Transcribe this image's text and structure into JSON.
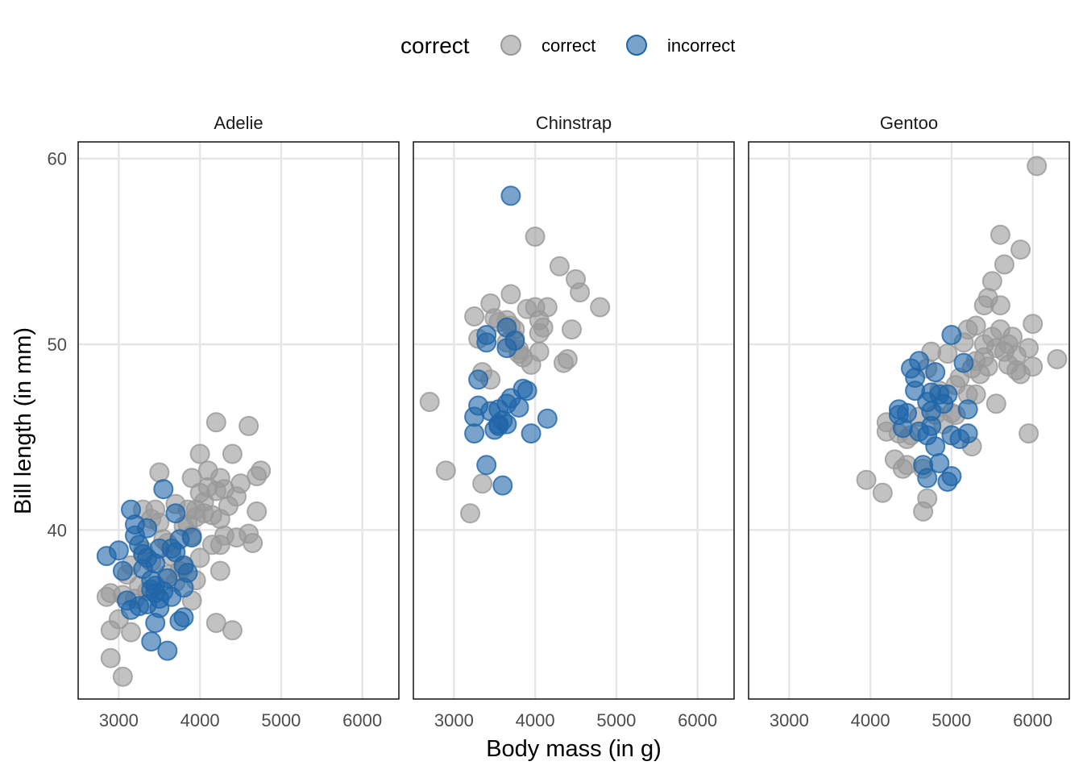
{
  "chart_data": {
    "type": "scatter",
    "xlabel": "Body mass (in g)",
    "ylabel": "Bill length (in mm)",
    "xlim": [
      2500,
      6450
    ],
    "ylim": [
      30.9,
      60.9
    ],
    "x_ticks": [
      3000,
      4000,
      5000,
      6000
    ],
    "y_ticks": [
      40,
      50,
      60
    ],
    "grid": true,
    "legend": {
      "title": "correct",
      "position": "top",
      "entries": [
        {
          "label": "correct",
          "color": "#999999"
        },
        {
          "label": "incorrect",
          "color": "#1f65a8"
        }
      ]
    },
    "colors": {
      "correct": "#999999",
      "incorrect": "#1f65a8"
    },
    "facets": [
      {
        "name": "Adelie",
        "correct": [
          [
            2850,
            36.4
          ],
          [
            2900,
            36.6
          ],
          [
            2900,
            34.6
          ],
          [
            2900,
            33.1
          ],
          [
            3050,
            32.1
          ],
          [
            3000,
            35.2
          ],
          [
            3050,
            36.5
          ],
          [
            3150,
            34.5
          ],
          [
            3100,
            37.6
          ],
          [
            3200,
            36.3
          ],
          [
            3250,
            37.0
          ],
          [
            3300,
            38.9
          ],
          [
            3300,
            41.1
          ],
          [
            3350,
            36.7
          ],
          [
            3400,
            38.3
          ],
          [
            3400,
            40.6
          ],
          [
            3450,
            41.1
          ],
          [
            3500,
            43.1
          ],
          [
            3500,
            40.4
          ],
          [
            3550,
            39.5
          ],
          [
            3600,
            39.3
          ],
          [
            3650,
            38.6
          ],
          [
            3700,
            41.4
          ],
          [
            3750,
            37.8
          ],
          [
            3800,
            40.2
          ],
          [
            3800,
            38.0
          ],
          [
            3850,
            41.1
          ],
          [
            3900,
            39.7
          ],
          [
            3900,
            36.2
          ],
          [
            3950,
            41.1
          ],
          [
            3950,
            37.3
          ],
          [
            4000,
            44.1
          ],
          [
            4000,
            42.0
          ],
          [
            4000,
            38.5
          ],
          [
            4050,
            41.5
          ],
          [
            4050,
            40.9
          ],
          [
            4100,
            43.2
          ],
          [
            4100,
            42.3
          ],
          [
            4150,
            39.2
          ],
          [
            4200,
            45.8
          ],
          [
            4200,
            35.0
          ],
          [
            4250,
            42.8
          ],
          [
            4250,
            40.6
          ],
          [
            4250,
            39.2
          ],
          [
            4250,
            37.8
          ],
          [
            4300,
            42.2
          ],
          [
            4300,
            39.7
          ],
          [
            4350,
            41.3
          ],
          [
            4400,
            44.1
          ],
          [
            4400,
            34.6
          ],
          [
            4450,
            41.8
          ],
          [
            4450,
            39.6
          ],
          [
            4500,
            42.5
          ],
          [
            4600,
            45.6
          ],
          [
            4600,
            39.8
          ],
          [
            4650,
            39.3
          ],
          [
            4700,
            42.9
          ],
          [
            4700,
            41.0
          ],
          [
            4750,
            43.2
          ],
          [
            3900,
            42.8
          ],
          [
            4150,
            40.8
          ],
          [
            3850,
            40.3
          ],
          [
            3700,
            37.2
          ],
          [
            3600,
            37.6
          ],
          [
            3150,
            38.1
          ],
          [
            4200,
            42.1
          ],
          [
            3950,
            40.7
          ]
        ],
        "incorrect": [
          [
            2850,
            38.6
          ],
          [
            3000,
            38.9
          ],
          [
            3050,
            37.8
          ],
          [
            3100,
            36.2
          ],
          [
            3150,
            35.7
          ],
          [
            3150,
            41.1
          ],
          [
            3200,
            40.3
          ],
          [
            3200,
            39.7
          ],
          [
            3250,
            39.2
          ],
          [
            3250,
            35.9
          ],
          [
            3300,
            37.9
          ],
          [
            3300,
            38.7
          ],
          [
            3350,
            36.0
          ],
          [
            3350,
            40.1
          ],
          [
            3400,
            37.3
          ],
          [
            3400,
            34.0
          ],
          [
            3450,
            36.6
          ],
          [
            3450,
            35.0
          ],
          [
            3450,
            38.2
          ],
          [
            3500,
            39.0
          ],
          [
            3500,
            35.8
          ],
          [
            3550,
            42.2
          ],
          [
            3550,
            36.7
          ],
          [
            3600,
            33.5
          ],
          [
            3600,
            37.4
          ],
          [
            3650,
            39.0
          ],
          [
            3650,
            36.4
          ],
          [
            3700,
            38.8
          ],
          [
            3700,
            40.9
          ],
          [
            3750,
            35.1
          ],
          [
            3750,
            39.5
          ],
          [
            3800,
            35.3
          ],
          [
            3800,
            36.9
          ],
          [
            3800,
            38.1
          ],
          [
            3850,
            37.7
          ],
          [
            3900,
            39.6
          ],
          [
            3400,
            36.8
          ],
          [
            3350,
            38.5
          ],
          [
            3500,
            36.3
          ],
          [
            3450,
            37.0
          ]
        ]
      },
      {
        "name": "Chinstrap",
        "correct": [
          [
            2700,
            46.9
          ],
          [
            2900,
            43.2
          ],
          [
            3200,
            40.9
          ],
          [
            3250,
            51.5
          ],
          [
            3300,
            50.3
          ],
          [
            3350,
            42.5
          ],
          [
            3350,
            48.5
          ],
          [
            3450,
            52.2
          ],
          [
            3500,
            51.4
          ],
          [
            3650,
            51.3
          ],
          [
            3700,
            52.7
          ],
          [
            3700,
            51.0
          ],
          [
            3750,
            50.8
          ],
          [
            3750,
            50.3
          ],
          [
            3800,
            49.5
          ],
          [
            3800,
            49.7
          ],
          [
            3900,
            51.9
          ],
          [
            3950,
            48.9
          ],
          [
            4000,
            55.8
          ],
          [
            4050,
            51.3
          ],
          [
            4050,
            50.6
          ],
          [
            4100,
            50.9
          ],
          [
            4150,
            52.0
          ],
          [
            4300,
            54.2
          ],
          [
            4350,
            49.0
          ],
          [
            4400,
            49.2
          ],
          [
            4450,
            50.8
          ],
          [
            4500,
            53.5
          ],
          [
            4550,
            52.8
          ],
          [
            4800,
            52.0
          ],
          [
            3850,
            49.3
          ],
          [
            3650,
            50.1
          ],
          [
            4050,
            49.6
          ],
          [
            3550,
            51.2
          ],
          [
            4000,
            52.0
          ],
          [
            3450,
            48.1
          ]
        ],
        "incorrect": [
          [
            3250,
            46.1
          ],
          [
            3250,
            45.2
          ],
          [
            3300,
            46.7
          ],
          [
            3300,
            48.1
          ],
          [
            3400,
            50.5
          ],
          [
            3400,
            50.1
          ],
          [
            3400,
            43.5
          ],
          [
            3450,
            46.4
          ],
          [
            3500,
            45.4
          ],
          [
            3550,
            45.7
          ],
          [
            3550,
            46.5
          ],
          [
            3600,
            45.9
          ],
          [
            3600,
            42.4
          ],
          [
            3650,
            46.8
          ],
          [
            3650,
            50.9
          ],
          [
            3650,
            49.8
          ],
          [
            3700,
            47.1
          ],
          [
            3700,
            58.0
          ],
          [
            3750,
            50.2
          ],
          [
            3800,
            46.6
          ],
          [
            3850,
            47.6
          ],
          [
            3900,
            47.5
          ],
          [
            3950,
            45.2
          ],
          [
            4150,
            46.0
          ],
          [
            3550,
            45.6
          ],
          [
            3650,
            45.7
          ]
        ]
      },
      {
        "name": "Gentoo",
        "correct": [
          [
            3950,
            42.7
          ],
          [
            4150,
            42.0
          ],
          [
            4200,
            45.8
          ],
          [
            4200,
            45.3
          ],
          [
            4300,
            43.8
          ],
          [
            4350,
            45.2
          ],
          [
            4400,
            43.3
          ],
          [
            4450,
            44.9
          ],
          [
            4450,
            43.5
          ],
          [
            4500,
            45.1
          ],
          [
            4600,
            46.1
          ],
          [
            4650,
            41.0
          ],
          [
            4650,
            43.3
          ],
          [
            4700,
            41.7
          ],
          [
            4700,
            48.7
          ],
          [
            4750,
            49.6
          ],
          [
            4800,
            46.2
          ],
          [
            4850,
            47.5
          ],
          [
            4900,
            45.7
          ],
          [
            4950,
            49.5
          ],
          [
            5000,
            46.3
          ],
          [
            5050,
            47.8
          ],
          [
            5050,
            46.2
          ],
          [
            5100,
            48.2
          ],
          [
            5150,
            50.1
          ],
          [
            5200,
            50.8
          ],
          [
            5250,
            44.5
          ],
          [
            5250,
            48.7
          ],
          [
            5300,
            47.3
          ],
          [
            5300,
            49.1
          ],
          [
            5350,
            48.4
          ],
          [
            5400,
            52.1
          ],
          [
            5400,
            50.0
          ],
          [
            5450,
            52.5
          ],
          [
            5450,
            48.8
          ],
          [
            5500,
            53.4
          ],
          [
            5500,
            50.4
          ],
          [
            5550,
            49.8
          ],
          [
            5550,
            46.8
          ],
          [
            5600,
            55.9
          ],
          [
            5600,
            50.8
          ],
          [
            5650,
            54.3
          ],
          [
            5650,
            49.6
          ],
          [
            5700,
            50.0
          ],
          [
            5750,
            50.4
          ],
          [
            5800,
            48.6
          ],
          [
            5800,
            49.4
          ],
          [
            5850,
            55.1
          ],
          [
            5850,
            48.4
          ],
          [
            5950,
            49.8
          ],
          [
            5950,
            45.2
          ],
          [
            6000,
            48.8
          ],
          [
            6000,
            51.1
          ],
          [
            6050,
            59.6
          ],
          [
            6300,
            49.2
          ],
          [
            5200,
            47.3
          ],
          [
            5400,
            49.3
          ],
          [
            5600,
            52.1
          ],
          [
            5700,
            48.9
          ],
          [
            5300,
            51.0
          ]
        ],
        "incorrect": [
          [
            4350,
            46.5
          ],
          [
            4350,
            46.2
          ],
          [
            4400,
            45.5
          ],
          [
            4450,
            46.3
          ],
          [
            4500,
            48.7
          ],
          [
            4550,
            47.5
          ],
          [
            4550,
            48.2
          ],
          [
            4600,
            49.1
          ],
          [
            4600,
            45.3
          ],
          [
            4650,
            43.5
          ],
          [
            4700,
            46.9
          ],
          [
            4700,
            45.1
          ],
          [
            4700,
            42.8
          ],
          [
            4750,
            46.4
          ],
          [
            4750,
            47.4
          ],
          [
            4800,
            44.5
          ],
          [
            4800,
            48.5
          ],
          [
            4850,
            47.3
          ],
          [
            4850,
            43.6
          ],
          [
            4900,
            46.8
          ],
          [
            4950,
            47.3
          ],
          [
            4950,
            42.6
          ],
          [
            5000,
            50.5
          ],
          [
            5000,
            45.1
          ],
          [
            5000,
            42.9
          ],
          [
            5100,
            44.9
          ],
          [
            5150,
            49.0
          ],
          [
            5200,
            46.5
          ],
          [
            5200,
            45.2
          ],
          [
            4750,
            45.6
          ]
        ]
      }
    ]
  }
}
